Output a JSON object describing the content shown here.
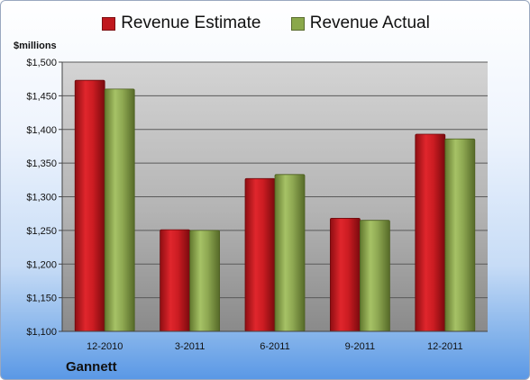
{
  "legend": {
    "estimate_label": "Revenue Estimate",
    "actual_label": "Revenue Actual",
    "estimate_color": "#c0181e",
    "actual_color": "#8aa84a"
  },
  "units_label": "$millions",
  "company_label": "Gannett",
  "chart_data": {
    "type": "bar",
    "categories": [
      "12-2010",
      "3-2011",
      "6-2011",
      "9-2011",
      "12-2011"
    ],
    "series": [
      {
        "name": "Revenue Estimate",
        "values": [
          1473,
          1251,
          1327,
          1268,
          1393
        ]
      },
      {
        "name": "Revenue Actual",
        "values": [
          1460,
          1250,
          1333,
          1265,
          1386
        ]
      }
    ],
    "ylabel": "$millions",
    "ylim": [
      1100,
      1500
    ],
    "yticks": [
      1100,
      1150,
      1200,
      1250,
      1300,
      1350,
      1400,
      1450,
      1500
    ],
    "ytick_labels": [
      "$1,100",
      "$1,150",
      "$1,200",
      "$1,250",
      "$1,300",
      "$1,350",
      "$1,400",
      "$1,450",
      "$1,500"
    ],
    "grid": true,
    "legend_position": "top"
  }
}
